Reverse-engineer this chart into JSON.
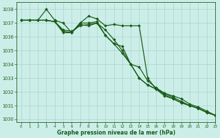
{
  "title": "Graphe pression niveau de la mer (hPa)",
  "background_color": "#cceee8",
  "grid_color": "#aad4cc",
  "line_color": "#1a5c1a",
  "xlim": [
    -0.5,
    23
  ],
  "ylim": [
    1029.8,
    1038.5
  ],
  "yticks": [
    1030,
    1031,
    1032,
    1033,
    1034,
    1035,
    1036,
    1037,
    1038
  ],
  "xticks": [
    0,
    1,
    2,
    3,
    4,
    5,
    6,
    7,
    8,
    9,
    10,
    11,
    12,
    13,
    14,
    15,
    16,
    17,
    18,
    19,
    20,
    21,
    22,
    23
  ],
  "series": [
    [
      1037.2,
      1037.2,
      1037.2,
      1038.0,
      1037.2,
      1037.0,
      1036.3,
      1037.0,
      1037.5,
      1037.3,
      1036.8,
      1036.9,
      1036.8,
      1036.8,
      1036.8,
      1033.0,
      1032.2,
      1031.7,
      1031.5,
      1031.2,
      1031.0,
      1030.8,
      1030.5,
      1030.3
    ],
    [
      1037.2,
      1037.2,
      1037.2,
      1037.2,
      1037.1,
      1036.3,
      1036.3,
      1037.0,
      1037.0,
      1037.1,
      1036.1,
      1035.5,
      1034.8,
      1034.0,
      1033.0,
      1032.5,
      1032.2,
      1031.8,
      1031.5,
      1031.2,
      1031.0,
      1030.8,
      1030.5,
      1030.3
    ],
    [
      1037.2,
      1037.2,
      1037.2,
      1037.2,
      1037.1,
      1036.4,
      1036.3,
      1036.9,
      1036.8,
      1037.0,
      1036.1,
      1035.5,
      1035.3,
      1034.0,
      1033.8,
      1032.8,
      1032.3,
      1031.9,
      1031.7,
      1031.5,
      1031.1,
      1030.9,
      1030.6,
      1030.3
    ],
    [
      1037.2,
      1037.2,
      1037.2,
      1037.2,
      1037.1,
      1036.5,
      1036.4,
      1036.8,
      1036.9,
      1037.0,
      1036.5,
      1035.8,
      1035.0,
      1034.0,
      1033.0,
      1032.5,
      1032.2,
      1031.9,
      1031.6,
      1031.3,
      1031.0,
      1030.8,
      1030.5,
      1030.3
    ]
  ]
}
